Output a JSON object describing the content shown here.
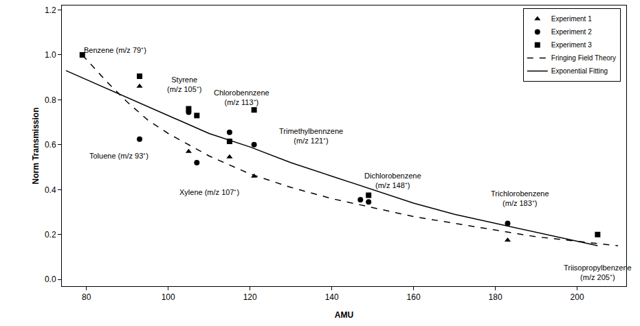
{
  "chart_data": {
    "type": "scatter",
    "x_label": "AMU",
    "y_label": "Norm Transmission",
    "xlim": [
      74,
      212
    ],
    "xticks": [
      80,
      100,
      120,
      140,
      160,
      180,
      200
    ],
    "ylim": [
      -0.03,
      1.22
    ],
    "yticks": [
      {
        "value": 0,
        "label": "0.0"
      },
      {
        "value": 0.2,
        "label": "0.2"
      },
      {
        "value": 0.4,
        "label": "0.4"
      },
      {
        "value": 0.6,
        "label": "0.6"
      },
      {
        "value": 0.8,
        "label": "0.8"
      },
      {
        "value": 1.0,
        "label": "1.0"
      },
      {
        "value": 1.2,
        "label": "1.2"
      }
    ],
    "grid": false,
    "legend": "upper right",
    "series": [
      {
        "name": "Experiment 1",
        "type": "scatter",
        "marker": "triangle",
        "color": "#000000",
        "x": [
          93,
          105,
          115,
          121,
          183
        ],
        "values": [
          0.86,
          0.57,
          0.545,
          0.46,
          0.175
        ]
      },
      {
        "name": "Experiment 2",
        "type": "scatter",
        "marker": "circle",
        "color": "#000000",
        "x": [
          93,
          105,
          107,
          115,
          121,
          147,
          149,
          183
        ],
        "values": [
          0.625,
          0.745,
          0.52,
          0.655,
          0.6,
          0.355,
          0.345,
          0.25
        ]
      },
      {
        "name": "Experiment 3",
        "type": "scatter",
        "marker": "square",
        "color": "#000000",
        "x": [
          79,
          93,
          105,
          107,
          115,
          121,
          149,
          205
        ],
        "values": [
          1.0,
          0.905,
          0.76,
          0.73,
          0.615,
          0.755,
          0.375,
          0.2
        ]
      },
      {
        "name": "Fringing Field Theory",
        "type": "line",
        "line_style": "dashed",
        "color": "#000000",
        "x": [
          79,
          85,
          90,
          95,
          100,
          110,
          120,
          130,
          140,
          150,
          160,
          170,
          180,
          190,
          200,
          210
        ],
        "values": [
          1.0,
          0.88,
          0.79,
          0.71,
          0.65,
          0.55,
          0.47,
          0.41,
          0.36,
          0.32,
          0.28,
          0.25,
          0.22,
          0.19,
          0.17,
          0.15
        ]
      },
      {
        "name": "Exponential Fitting",
        "type": "line",
        "line_style": "solid",
        "color": "#000000",
        "x": [
          75,
          90,
          100,
          110,
          120,
          130,
          140,
          150,
          160,
          170,
          180,
          190,
          200,
          205
        ],
        "values": [
          0.93,
          0.81,
          0.73,
          0.65,
          0.59,
          0.52,
          0.46,
          0.4,
          0.34,
          0.29,
          0.25,
          0.21,
          0.17,
          0.15
        ]
      }
    ],
    "annotations": [
      {
        "lines": [
          "Benzene (m/z 79⁺)"
        ]
      },
      {
        "lines": [
          "Styrene",
          "(m/z 105⁺)"
        ]
      },
      {
        "lines": [
          "Chlorobennzene",
          "(m/z 113⁺)"
        ]
      },
      {
        "lines": [
          "Trimethylbennzene",
          "(m/z 121⁺)"
        ]
      },
      {
        "lines": [
          "Toluene (m/z 93⁺)"
        ]
      },
      {
        "lines": [
          "Xylene (m/z 107⁺)"
        ]
      },
      {
        "lines": [
          "Dichlorobenzene",
          "(m/z 148⁺)"
        ]
      },
      {
        "lines": [
          "Trichlorobenzene",
          "(m/z 183⁺)"
        ]
      },
      {
        "lines": [
          "Triisopropylbenzene",
          "(m/z 205⁺)"
        ]
      }
    ]
  }
}
